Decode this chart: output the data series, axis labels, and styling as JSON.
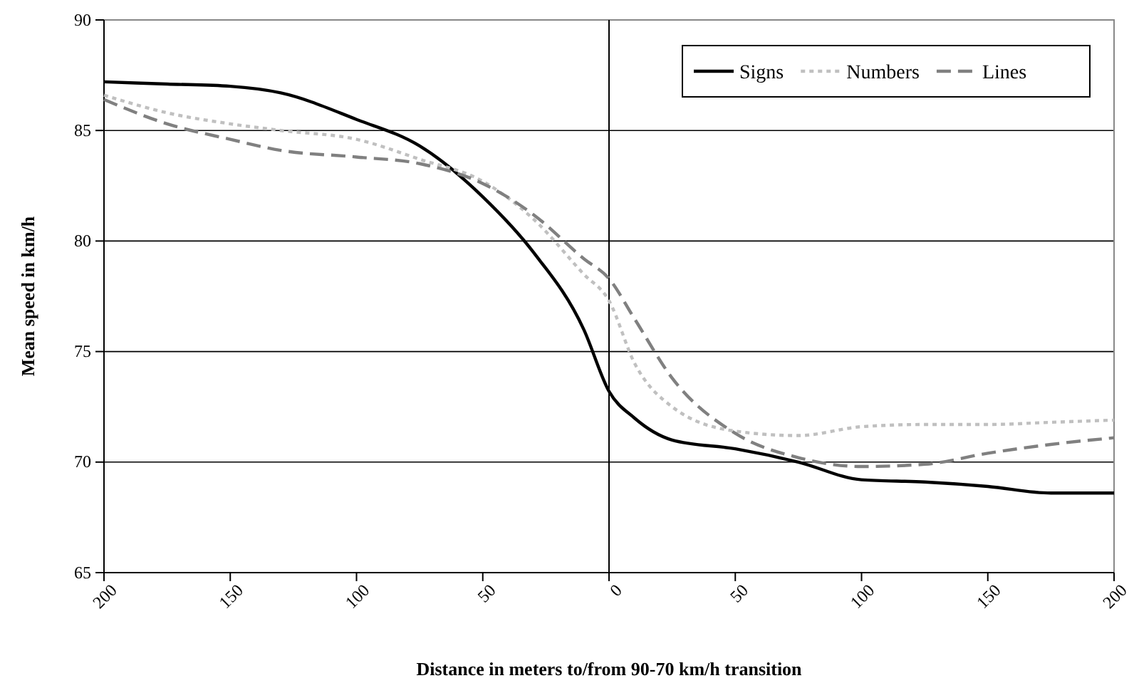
{
  "chart_data": {
    "type": "line",
    "xlabel": "Distance in meters to/from 90-70 km/h transition",
    "ylabel": "Mean speed in km/h",
    "x": [
      -200,
      -175,
      -150,
      -130,
      -100,
      -75,
      -50,
      -30,
      -10,
      0,
      10,
      25,
      50,
      75,
      100,
      125,
      150,
      175,
      200
    ],
    "xlim": [
      -200,
      200
    ],
    "xticks": [
      {
        "value": -200,
        "label": "200"
      },
      {
        "value": -150,
        "label": "150"
      },
      {
        "value": -100,
        "label": "100"
      },
      {
        "value": -50,
        "label": "50"
      },
      0,
      50,
      100,
      150,
      200
    ],
    "ylim": [
      65,
      90
    ],
    "yticks": [
      65,
      70,
      75,
      80,
      85,
      90
    ],
    "grid": "y",
    "legend": "top right",
    "marker": "none",
    "ref_lines": [
      {
        "axis": "x",
        "value": 0,
        "color": "#000000"
      }
    ],
    "series": [
      {
        "name": "Signs",
        "color": "#000000",
        "line_style": "solid",
        "values": [
          87.2,
          87.1,
          87.0,
          86.7,
          85.5,
          84.3,
          82.0,
          79.5,
          76.0,
          73.2,
          72.0,
          71.0,
          70.6,
          70.0,
          69.2,
          69.1,
          68.9,
          68.6,
          68.6
        ]
      },
      {
        "name": "Numbers",
        "color": "#c0c0c0",
        "line_style": "dotted",
        "values": [
          86.6,
          85.8,
          85.3,
          85.0,
          84.6,
          83.7,
          82.7,
          81.0,
          78.5,
          77.3,
          74.5,
          72.5,
          71.4,
          71.2,
          71.6,
          71.7,
          71.7,
          71.8,
          71.9
        ]
      },
      {
        "name": "Lines",
        "color": "#808080",
        "line_style": "dashed",
        "values": [
          86.4,
          85.3,
          84.6,
          84.1,
          83.8,
          83.5,
          82.6,
          81.2,
          79.2,
          78.3,
          76.5,
          73.8,
          71.3,
          70.2,
          69.8,
          69.9,
          70.4,
          70.8,
          71.1
        ]
      }
    ]
  }
}
